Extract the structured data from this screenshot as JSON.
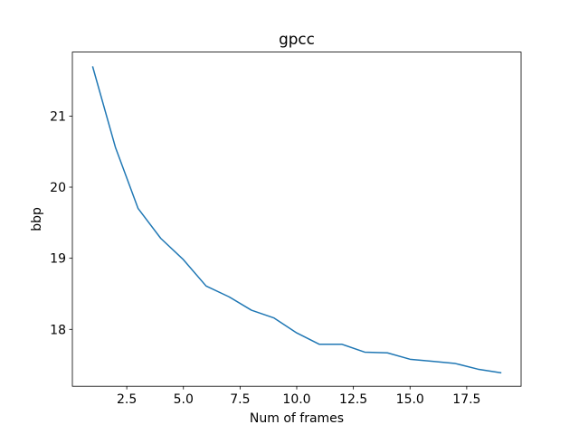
{
  "chart_data": {
    "type": "line",
    "title": "gpcc",
    "xlabel": "Num of frames",
    "ylabel": "bbp",
    "xlim": [
      0.1,
      19.9
    ],
    "ylim": [
      17.2,
      21.9
    ],
    "xticks": [
      2.5,
      5.0,
      7.5,
      10.0,
      12.5,
      15.0,
      17.5
    ],
    "xtick_labels": [
      "2.5",
      "5.0",
      "7.5",
      "10.0",
      "12.5",
      "15.0",
      "17.5"
    ],
    "yticks": [
      18,
      19,
      20,
      21
    ],
    "ytick_labels": [
      "18",
      "19",
      "20",
      "21"
    ],
    "grid": false,
    "series": [
      {
        "color": "#1f77b4",
        "x": [
          1,
          2,
          3,
          4,
          5,
          6,
          7,
          8,
          9,
          10,
          11,
          12,
          13,
          14,
          15,
          16,
          17,
          18,
          19
        ],
        "y": [
          21.69,
          20.56,
          19.7,
          19.28,
          18.98,
          18.61,
          18.46,
          18.27,
          18.16,
          17.95,
          17.79,
          17.79,
          17.68,
          17.67,
          17.58,
          17.55,
          17.52,
          17.44,
          17.39
        ]
      }
    ]
  }
}
